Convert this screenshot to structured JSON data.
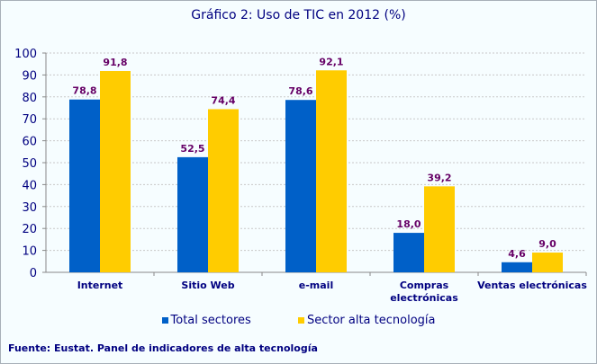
{
  "chart_data": {
    "type": "bar",
    "title": "Gráfico 2: Uso de TIC en 2012 (%)",
    "categories": [
      "Internet",
      "Sitio Web",
      "e-mail",
      "Compras electrónicas",
      "Ventas electrónicas"
    ],
    "series": [
      {
        "name": "Total sectores",
        "values": [
          78.8,
          52.5,
          78.6,
          18.0,
          4.6
        ],
        "labels": [
          "78,8",
          "52,5",
          "78,6",
          "18,0",
          "4,6"
        ],
        "color": "#0060c8"
      },
      {
        "name": "Sector alta tecnología",
        "values": [
          91.8,
          74.4,
          92.1,
          39.2,
          9.0
        ],
        "labels": [
          "91,8",
          "74,4",
          "92,1",
          "39,2",
          "9,0"
        ],
        "color": "#ffcc00"
      }
    ],
    "yticks": [
      "0",
      "10",
      "20",
      "30",
      "40",
      "50",
      "60",
      "70",
      "80",
      "90",
      "100"
    ],
    "ylim": [
      0,
      100
    ],
    "grid": true,
    "legend": "bottom",
    "xlabel": "",
    "ylabel": ""
  },
  "source": "Fuente: Eustat. Panel de indicadores de alta tecnología"
}
